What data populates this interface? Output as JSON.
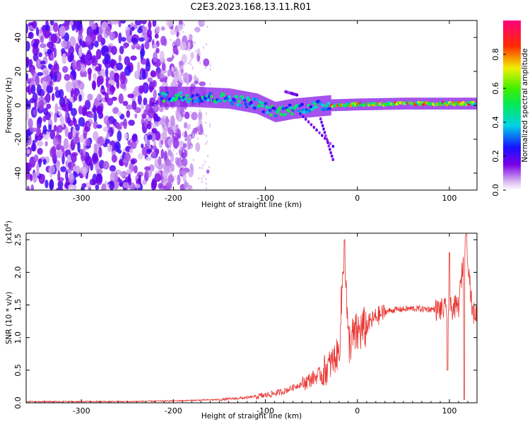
{
  "title": "C2E3.2023.168.13.11.R01",
  "chart_data": [
    {
      "type": "heatmap",
      "xlabel": "Height of straight line (km)",
      "ylabel": "Frequency (Hz)",
      "xlim": [
        -360,
        130
      ],
      "ylim": [
        -50,
        50
      ],
      "xticks": [
        -300,
        -200,
        -100,
        0,
        100
      ],
      "yticks": [
        -40,
        -20,
        0,
        20,
        40
      ],
      "colorbar": {
        "label": "Normalized spectral amplitude",
        "range": [
          0.0,
          1.0
        ],
        "ticks": [
          "0.0",
          "0.2",
          "0.4",
          "0.6",
          "0.8"
        ],
        "colormap": "rainbow (white-violet-blue-cyan-green-yellow-red-magenta)"
      },
      "features": [
        {
          "region": "noise",
          "x_range": [
            -360,
            -200
          ],
          "freq_range": [
            -50,
            50
          ],
          "amplitude": 0.1
        },
        {
          "region": "signal-band",
          "path": [
            [
              -215,
              5
            ],
            [
              -180,
              5
            ],
            [
              -140,
              4
            ],
            [
              -110,
              1
            ],
            [
              -90,
              -4
            ],
            [
              -70,
              -2
            ],
            [
              -50,
              -1
            ],
            [
              -30,
              0
            ],
            [
              0,
              0.5
            ],
            [
              50,
              1
            ],
            [
              100,
              1
            ],
            [
              130,
              1
            ]
          ],
          "amplitude_peak": 0.9
        }
      ]
    },
    {
      "type": "line",
      "xlabel": "Height of straight line (km)",
      "ylabel": "SNR (10 * v/v)",
      "yscale_note": "(x10^4)",
      "xlim": [
        -360,
        130
      ],
      "ylim": [
        0,
        2.6
      ],
      "xticks": [
        -300,
        -200,
        -100,
        0,
        100
      ],
      "yticks": [
        "0.0",
        "0.5",
        "1.0",
        "1.5",
        "2.0",
        "2.5"
      ],
      "series": [
        {
          "color": "#e8332e",
          "x": [
            -360,
            -250,
            -200,
            -150,
            -120,
            -100,
            -80,
            -60,
            -40,
            -30,
            -20,
            -14,
            -10,
            0,
            10,
            20,
            30,
            40,
            60,
            80,
            100,
            110,
            118,
            125,
            130
          ],
          "y": [
            0.02,
            0.02,
            0.03,
            0.05,
            0.08,
            0.12,
            0.18,
            0.3,
            0.45,
            0.6,
            0.8,
            2.5,
            0.95,
            1.1,
            1.2,
            1.33,
            1.4,
            1.43,
            1.45,
            1.44,
            1.45,
            1.5,
            2.6,
            1.4,
            1.38
          ]
        }
      ]
    }
  ],
  "labels": {
    "top_xlabel": "Height of straight line (km)",
    "top_ylabel": "Frequency (Hz)",
    "bottom_xlabel": "Height of straight line (km)",
    "bottom_ylabel": "SNR (10 * v/v)",
    "exp_prefix": "(x10",
    "exp_power": "4",
    "exp_suffix": ")",
    "colorbar_label": "Normalized spectral amplitude"
  }
}
